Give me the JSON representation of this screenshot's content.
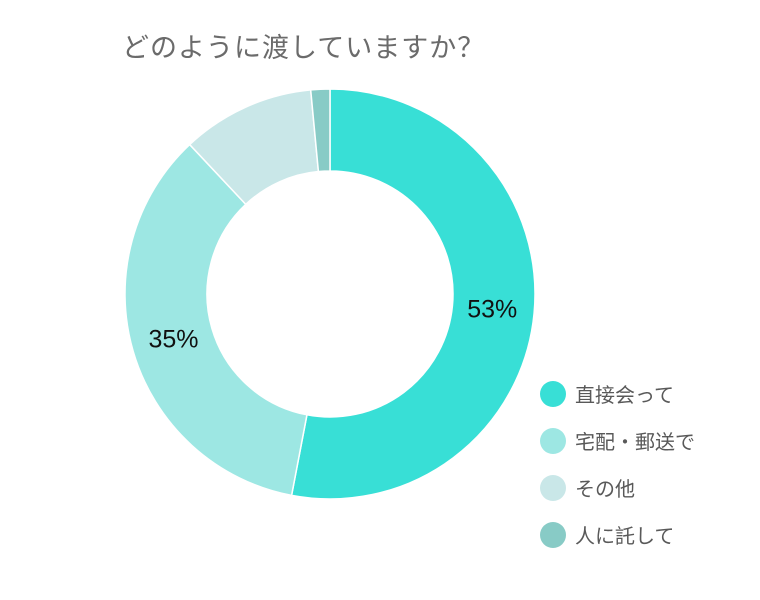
{
  "chart_data": {
    "type": "donut",
    "title": "どのように渡していますか？",
    "categories": [
      "直接会って",
      "宅配・郵送で",
      "その他",
      "人に託して"
    ],
    "values": [
      53,
      35,
      10.5,
      1.5
    ],
    "labels": [
      "53%",
      "35%",
      "",
      ""
    ],
    "colors": [
      "#38dfd6",
      "#9de7e3",
      "#c9e7e8",
      "#88cbc6"
    ],
    "legend_position": "bottom-right"
  }
}
